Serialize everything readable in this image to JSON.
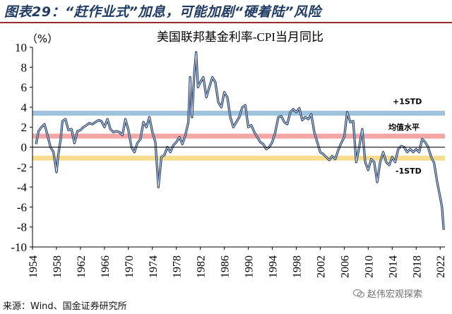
{
  "figure": {
    "title": "图表29：“赶作业式”加息，可能加剧“硬着陆”风险",
    "source": "来源：Wind、国金证券研究所",
    "watermark": "赵伟宏观探索",
    "watermark_icon": "wechat-icon"
  },
  "colors": {
    "title": "#1f3b63",
    "title_rule": "#9c2b2b",
    "line": "#1f3b63",
    "line_highlight": "#dfe8f5",
    "band_plus1std": "#9fc3dd",
    "band_mean": "#f4a6a6",
    "band_minus1std": "#f7dc8e"
  },
  "chart_data": {
    "type": "line",
    "title": "美国联邦基金利率-CPI当月同比",
    "ylabel": "（%）",
    "xlabel": "",
    "ylim": [
      -10,
      10
    ],
    "yticks": [
      10,
      8,
      6,
      4,
      2,
      0,
      -2,
      -4,
      -6,
      -8,
      -10
    ],
    "xlim": [
      1954,
      2022.8
    ],
    "xticks": [
      1954,
      1958,
      1962,
      1966,
      1970,
      1974,
      1978,
      1982,
      1986,
      1990,
      1994,
      1998,
      2002,
      2006,
      2010,
      2014,
      2018,
      2022
    ],
    "grid": false,
    "reference_bands": [
      {
        "label": "+1STD",
        "value": 3.4
      },
      {
        "label": "均值水平",
        "value": 1.1
      },
      {
        "label": "-1STD",
        "value": -1.1
      }
    ],
    "series": [
      {
        "name": "",
        "x": [
          1954.6,
          1955.0,
          1955.5,
          1956.0,
          1956.5,
          1957.0,
          1957.5,
          1958.0,
          1958.3,
          1958.7,
          1959.0,
          1959.5,
          1960.0,
          1960.5,
          1961.0,
          1961.5,
          1962.0,
          1962.5,
          1963.0,
          1963.5,
          1964.0,
          1964.5,
          1965.0,
          1965.5,
          1966.0,
          1966.5,
          1967.0,
          1967.5,
          1968.0,
          1968.5,
          1969.0,
          1969.5,
          1970.0,
          1970.5,
          1971.0,
          1971.5,
          1972.0,
          1972.5,
          1973.0,
          1973.5,
          1974.0,
          1974.5,
          1975.0,
          1975.5,
          1976.0,
          1976.5,
          1977.0,
          1977.5,
          1978.0,
          1978.5,
          1979.0,
          1979.5,
          1980.0,
          1980.3,
          1980.6,
          1981.0,
          1981.3,
          1981.6,
          1982.0,
          1982.5,
          1983.0,
          1983.5,
          1984.0,
          1984.5,
          1985.0,
          1985.5,
          1986.0,
          1986.5,
          1987.0,
          1987.5,
          1988.0,
          1988.5,
          1989.0,
          1989.5,
          1990.0,
          1990.5,
          1991.0,
          1991.5,
          1992.0,
          1992.5,
          1993.0,
          1993.5,
          1994.0,
          1994.5,
          1995.0,
          1995.5,
          1996.0,
          1996.5,
          1997.0,
          1997.5,
          1998.0,
          1998.5,
          1999.0,
          1999.5,
          2000.0,
          2000.5,
          2001.0,
          2001.5,
          2002.0,
          2002.5,
          2003.0,
          2003.5,
          2004.0,
          2004.5,
          2005.0,
          2005.5,
          2006.0,
          2006.5,
          2007.0,
          2007.5,
          2008.0,
          2008.5,
          2009.0,
          2009.5,
          2010.0,
          2010.5,
          2011.0,
          2011.5,
          2012.0,
          2012.5,
          2013.0,
          2013.5,
          2014.0,
          2014.5,
          2015.0,
          2015.5,
          2016.0,
          2016.5,
          2017.0,
          2017.5,
          2018.0,
          2018.5,
          2019.0,
          2019.5,
          2020.0,
          2020.5,
          2021.0,
          2021.5,
          2022.0,
          2022.3,
          2022.6
        ],
        "values": [
          0.3,
          1.6,
          2.0,
          2.3,
          1.2,
          0.0,
          -0.5,
          -2.5,
          -0.8,
          0.8,
          2.6,
          2.8,
          1.7,
          1.8,
          0.4,
          1.6,
          1.7,
          2.0,
          2.2,
          2.4,
          2.3,
          2.5,
          2.7,
          2.6,
          2.0,
          2.8,
          1.8,
          1.5,
          1.6,
          1.5,
          1.2,
          2.8,
          1.7,
          0.0,
          -0.5,
          0.4,
          0.8,
          2.5,
          2.0,
          3.0,
          1.5,
          0.5,
          -4.0,
          -1.0,
          -0.8,
          0.0,
          -0.5,
          0.2,
          0.5,
          1.0,
          0.3,
          1.2,
          2.5,
          7.0,
          3.0,
          7.5,
          9.5,
          6.0,
          6.5,
          7.0,
          5.0,
          6.0,
          7.0,
          6.5,
          4.5,
          4.0,
          5.5,
          5.0,
          3.0,
          2.0,
          2.5,
          3.0,
          4.0,
          4.2,
          2.0,
          2.2,
          1.5,
          1.0,
          0.5,
          0.3,
          -0.2,
          0.0,
          0.5,
          1.5,
          3.0,
          3.1,
          2.5,
          2.3,
          3.5,
          3.8,
          3.5,
          3.9,
          2.7,
          3.0,
          2.8,
          3.3,
          1.5,
          0.5,
          -0.5,
          -0.7,
          -1.0,
          -1.3,
          -0.9,
          -1.2,
          -0.3,
          0.4,
          1.0,
          3.5,
          2.5,
          2.6,
          -1.5,
          0.0,
          1.8,
          -1.5,
          -2.3,
          -1.2,
          -1.5,
          -3.5,
          -1.5,
          -0.5,
          -1.5,
          -1.8,
          -1.0,
          -1.5,
          -0.2,
          0.1,
          0.0,
          -0.5,
          -0.2,
          -0.5,
          -0.2,
          -0.5,
          0.8,
          0.5,
          0.0,
          -1.0,
          -1.6,
          -3.5,
          -5.0,
          -6.0,
          -8.3
        ]
      }
    ]
  }
}
